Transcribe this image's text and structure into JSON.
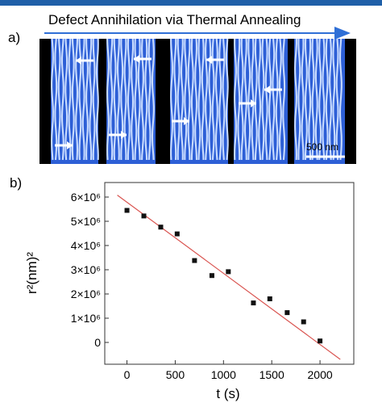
{
  "panel_a": {
    "label": "a)",
    "title": "Defect Annihilation via Thermal Annealing",
    "scale_bar_label": "500 nm",
    "colors": {
      "stripe_light": "#c9dcff",
      "stripe_dark": "#2d5fd6",
      "background": "#000000",
      "arrow": "#ffffff",
      "title_arrow": "#2f6fd6"
    }
  },
  "panel_b": {
    "label": "b)"
  },
  "chart_data": {
    "type": "scatter",
    "xlabel": "t (s)",
    "ylabel": "r²(nm)²",
    "xlim": [
      -230,
      2350
    ],
    "ylim": [
      -900000,
      6600000
    ],
    "x_ticks": [
      0,
      500,
      1000,
      1500,
      2000
    ],
    "x_tick_labels": [
      "0",
      "500",
      "1000",
      "1500",
      "2000"
    ],
    "y_ticks": [
      0,
      1000000,
      2000000,
      3000000,
      4000000,
      5000000,
      6000000
    ],
    "y_tick_labels": [
      "0",
      "1×10⁶",
      "2×10⁶",
      "3×10⁶",
      "4×10⁶",
      "5×10⁶",
      "6×10⁶"
    ],
    "grid": false,
    "series": [
      {
        "marker": "square",
        "color": "#111111",
        "x": [
          0,
          175,
          350,
          520,
          700,
          880,
          1050,
          1310,
          1480,
          1660,
          1830,
          2000
        ],
        "y": [
          5450000,
          5220000,
          4760000,
          4480000,
          3380000,
          2760000,
          2920000,
          1630000,
          1800000,
          1230000,
          850000,
          60000
        ]
      }
    ],
    "fit_line": {
      "color": "#d9534f",
      "x": [
        -100,
        2210
      ],
      "y": [
        6080000,
        -700000
      ]
    }
  }
}
